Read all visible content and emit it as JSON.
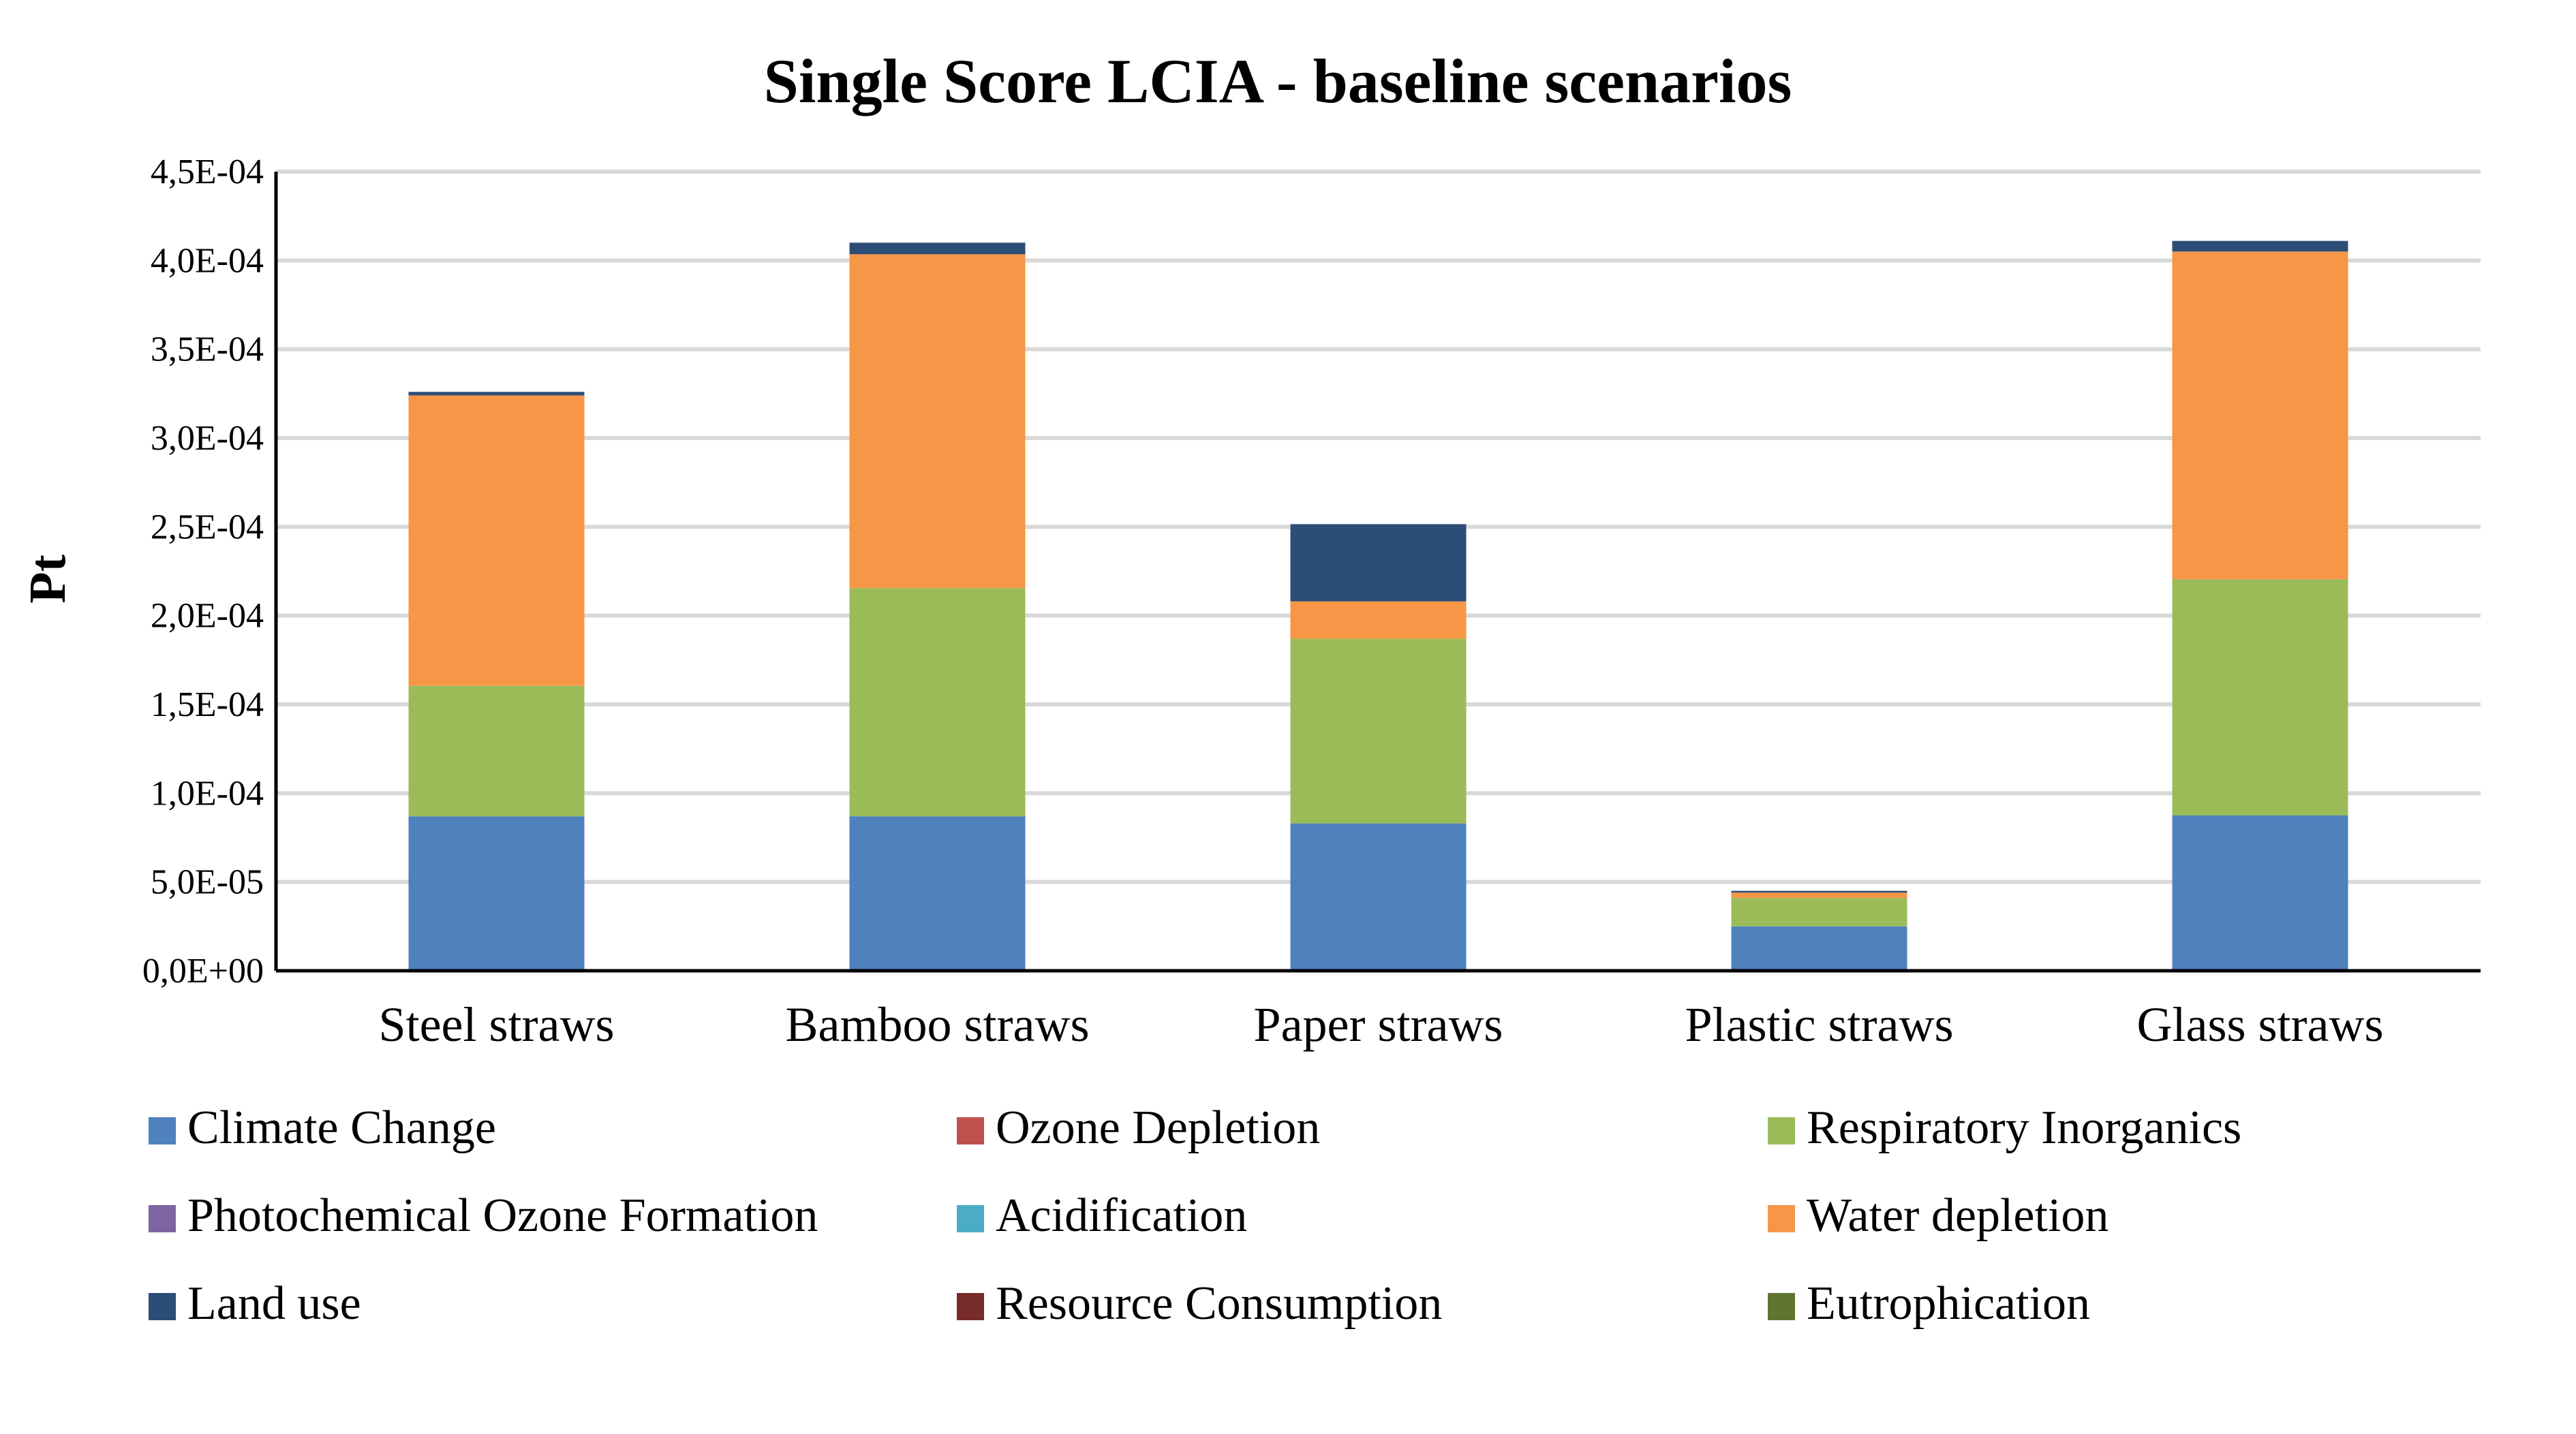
{
  "chart_data": {
    "type": "bar",
    "stacked": true,
    "title": "Single Score LCIA - baseline scenarios",
    "xlabel": "",
    "ylabel": "Pt",
    "ylim": [
      0,
      0.00045
    ],
    "yticks": [
      0,
      5e-05,
      0.0001,
      0.00015,
      0.0002,
      0.00025,
      0.0003,
      0.00035,
      0.0004,
      0.00045
    ],
    "ytick_labels": [
      "0,0E+00",
      "5,0E-05",
      "1,0E-04",
      "1,5E-04",
      "2,0E-04",
      "2,5E-04",
      "3,0E-04",
      "3,5E-04",
      "4,0E-04",
      "4,5E-04"
    ],
    "grid": true,
    "legend_position": "bottom",
    "categories": [
      "Steel straws",
      "Bamboo straws",
      "Paper straws",
      "Plastic straws",
      "Glass straws"
    ],
    "series": [
      {
        "name": "Climate Change",
        "color": "#4f81bd",
        "values": [
          8.7e-05,
          8.7e-05,
          8.3e-05,
          2.5e-05,
          8.75e-05
        ]
      },
      {
        "name": "Ozone Depletion",
        "color": "#c0504d",
        "values": [
          0,
          0,
          0,
          0,
          0
        ]
      },
      {
        "name": "Respiratory Inorganics",
        "color": "#9bbb59",
        "values": [
          7.35e-05,
          0.0001285,
          0.000104,
          1.6e-05,
          0.000133
        ]
      },
      {
        "name": "Photochemical Ozone Formation",
        "color": "#8064a2",
        "values": [
          0,
          0,
          0,
          0,
          0
        ]
      },
      {
        "name": "Acidification",
        "color": "#4bacc6",
        "values": [
          0,
          0,
          0,
          0,
          0
        ]
      },
      {
        "name": "Water depletion",
        "color": "#f79646",
        "values": [
          0.0001635,
          0.000188,
          2.1e-05,
          3e-06,
          0.0001845
        ]
      },
      {
        "name": "Land use",
        "color": "#2c4d75",
        "values": [
          2e-06,
          6.5e-06,
          4.35e-05,
          1e-06,
          6e-06
        ]
      },
      {
        "name": "Resource Consumption",
        "color": "#772c2a",
        "values": [
          0,
          0,
          0,
          0,
          0
        ]
      },
      {
        "name": "Eutrophication",
        "color": "#5f7530",
        "values": [
          0,
          0,
          0,
          0,
          0
        ]
      }
    ]
  }
}
